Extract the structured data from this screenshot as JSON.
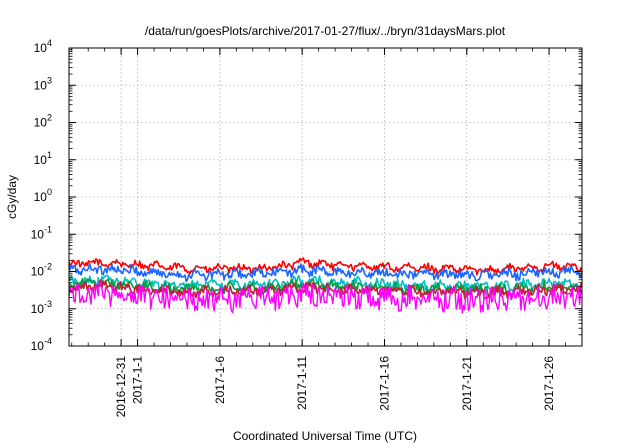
{
  "chart_data": {
    "type": "line",
    "title": "/data/run/goesPlots/archive/2017-01-27/flux/../bryn/31daysMars.plot",
    "xlabel": "Coordinated Universal Time (UTC)",
    "ylabel": "cGy/day",
    "y_scale": "log",
    "ylim": [
      0.0001,
      10000
    ],
    "xlim": [
      "2016-12-27T20:00",
      "2017-01-28T00:00"
    ],
    "y_ticks": [
      {
        "value": 0.0001,
        "base": "10",
        "exp": "-4"
      },
      {
        "value": 0.001,
        "base": "10",
        "exp": "-3"
      },
      {
        "value": 0.01,
        "base": "10",
        "exp": "-2"
      },
      {
        "value": 0.1,
        "base": "10",
        "exp": "-1"
      },
      {
        "value": 1,
        "base": "10",
        "exp": "0"
      },
      {
        "value": 10,
        "base": "10",
        "exp": "1"
      },
      {
        "value": 100,
        "base": "10",
        "exp": "2"
      },
      {
        "value": 1000,
        "base": "10",
        "exp": "3"
      },
      {
        "value": 10000,
        "base": "10",
        "exp": "4"
      }
    ],
    "x_ticks": [
      {
        "date": "2016-12-31",
        "label": "2016-12-31"
      },
      {
        "date": "2017-01-01",
        "label": "2017-1-1"
      },
      {
        "date": "2017-01-06",
        "label": "2017-1-6"
      },
      {
        "date": "2017-01-11",
        "label": "2017-1-11"
      },
      {
        "date": "2017-01-16",
        "label": "2017-1-16"
      },
      {
        "date": "2017-01-21",
        "label": "2017-1-21"
      },
      {
        "date": "2017-01-26",
        "label": "2017-1-26"
      }
    ],
    "grid": true,
    "series": [
      {
        "color": "#ff0000",
        "x": [
          "2016-12-28",
          "2016-12-30",
          "2017-01-01",
          "2017-01-04",
          "2017-01-08",
          "2017-01-10",
          "2017-01-11",
          "2017-01-13",
          "2017-01-16",
          "2017-01-19",
          "2017-01-22",
          "2017-01-24",
          "2017-01-26",
          "2017-01-28"
        ],
        "y": [
          0.016,
          0.017,
          0.015,
          0.012,
          0.012,
          0.014,
          0.018,
          0.015,
          0.013,
          0.012,
          0.011,
          0.012,
          0.014,
          0.013
        ]
      },
      {
        "color": "#1a66ff",
        "x": [
          "2016-12-28",
          "2016-12-30",
          "2017-01-01",
          "2017-01-04",
          "2017-01-08",
          "2017-01-10",
          "2017-01-11",
          "2017-01-13",
          "2017-01-16",
          "2017-01-19",
          "2017-01-22",
          "2017-01-24",
          "2017-01-26",
          "2017-01-28"
        ],
        "y": [
          0.011,
          0.012,
          0.01,
          0.008,
          0.0085,
          0.0095,
          0.011,
          0.0095,
          0.009,
          0.0085,
          0.008,
          0.0085,
          0.01,
          0.009
        ]
      },
      {
        "color": "#00c0c0",
        "x": [
          "2016-12-28",
          "2016-12-30",
          "2017-01-01",
          "2017-01-04",
          "2017-01-08",
          "2017-01-10",
          "2017-01-11",
          "2017-01-13",
          "2017-01-16",
          "2017-01-19",
          "2017-01-22",
          "2017-01-24",
          "2017-01-26",
          "2017-01-28"
        ],
        "y": [
          0.0055,
          0.006,
          0.005,
          0.0042,
          0.0045,
          0.005,
          0.0055,
          0.005,
          0.0045,
          0.0042,
          0.004,
          0.0042,
          0.005,
          0.0045
        ]
      },
      {
        "color": "#009e40",
        "x": [
          "2016-12-28",
          "2016-12-30",
          "2017-01-01",
          "2017-01-04",
          "2017-01-08",
          "2017-01-10",
          "2017-01-11",
          "2017-01-13",
          "2017-01-16",
          "2017-01-19",
          "2017-01-22",
          "2017-01-24",
          "2017-01-26",
          "2017-01-28"
        ],
        "y": [
          0.0045,
          0.005,
          0.004,
          0.0034,
          0.0036,
          0.004,
          0.0045,
          0.004,
          0.0037,
          0.0034,
          0.0032,
          0.0034,
          0.004,
          0.0037
        ]
      },
      {
        "color": "#c02030",
        "x": [
          "2016-12-28",
          "2016-12-30",
          "2017-01-01",
          "2017-01-04",
          "2017-01-08",
          "2017-01-10",
          "2017-01-11",
          "2017-01-13",
          "2017-01-16",
          "2017-01-19",
          "2017-01-22",
          "2017-01-24",
          "2017-01-26",
          "2017-01-28"
        ],
        "y": [
          0.0038,
          0.0042,
          0.0034,
          0.0028,
          0.003,
          0.0034,
          0.0038,
          0.0034,
          0.0031,
          0.0029,
          0.0027,
          0.0029,
          0.0034,
          0.0031
        ]
      },
      {
        "color": "#ff00ff",
        "x": [
          "2016-12-28",
          "2016-12-30",
          "2017-01-01",
          "2017-01-04",
          "2017-01-08",
          "2017-01-10",
          "2017-01-11",
          "2017-01-13",
          "2017-01-16",
          "2017-01-19",
          "2017-01-22",
          "2017-01-24",
          "2017-01-26",
          "2017-01-28"
        ],
        "y": [
          0.0025,
          0.0028,
          0.0022,
          0.0018,
          0.0019,
          0.0022,
          0.0025,
          0.0022,
          0.002,
          0.0018,
          0.0017,
          0.0018,
          0.0022,
          0.002
        ]
      }
    ]
  }
}
